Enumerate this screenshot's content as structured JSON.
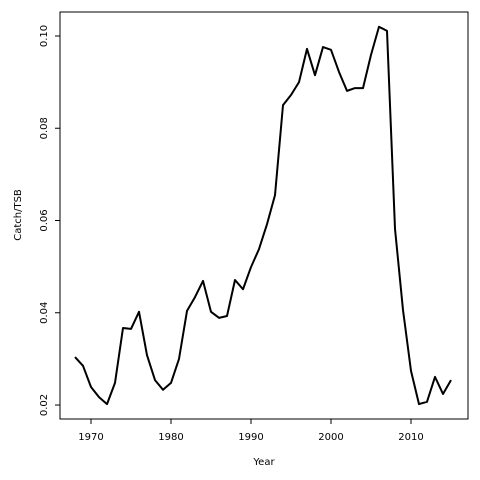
{
  "chart_data": {
    "type": "line",
    "x_label": "Year",
    "y_label": "Catch/TSB",
    "x": [
      1968,
      1969,
      1970,
      1971,
      1972,
      1973,
      1974,
      1975,
      1976,
      1977,
      1978,
      1979,
      1980,
      1981,
      1982,
      1983,
      1984,
      1985,
      1986,
      1987,
      1988,
      1989,
      1990,
      1991,
      1992,
      1993,
      1994,
      1995,
      1996,
      1997,
      1998,
      1999,
      2000,
      2001,
      2002,
      2003,
      2004,
      2005,
      2006,
      2007,
      2008,
      2009,
      2010,
      2011,
      2012,
      2013,
      2014,
      2015
    ],
    "series": [
      {
        "color": "#000000",
        "values": [
          0.0304,
          0.0285,
          0.0239,
          0.0217,
          0.0202,
          0.0248,
          0.0367,
          0.0365,
          0.0402,
          0.0308,
          0.0254,
          0.0233,
          0.0248,
          0.03,
          0.0404,
          0.0434,
          0.0469,
          0.0402,
          0.0389,
          0.0393,
          0.0471,
          0.0451,
          0.0499,
          0.0538,
          0.0592,
          0.0655,
          0.085,
          0.0872,
          0.09,
          0.0972,
          0.0915,
          0.0976,
          0.097,
          0.0922,
          0.0881,
          0.0887,
          0.0887,
          0.0959,
          0.102,
          0.1011,
          0.0582,
          0.0406,
          0.0274,
          0.0202,
          0.0207,
          0.0261,
          0.0224,
          0.0254
        ]
      }
    ],
    "xlim": [
      1966.125,
      2017.125
    ],
    "xticks": [
      1970,
      1980,
      1990,
      2000,
      2010
    ],
    "ylim": [
      0.01697,
      0.1052
    ],
    "yticks": [
      0.02,
      0.04,
      0.06,
      0.08,
      {
        "value": 0.1,
        "label": "0.10"
      }
    ]
  }
}
